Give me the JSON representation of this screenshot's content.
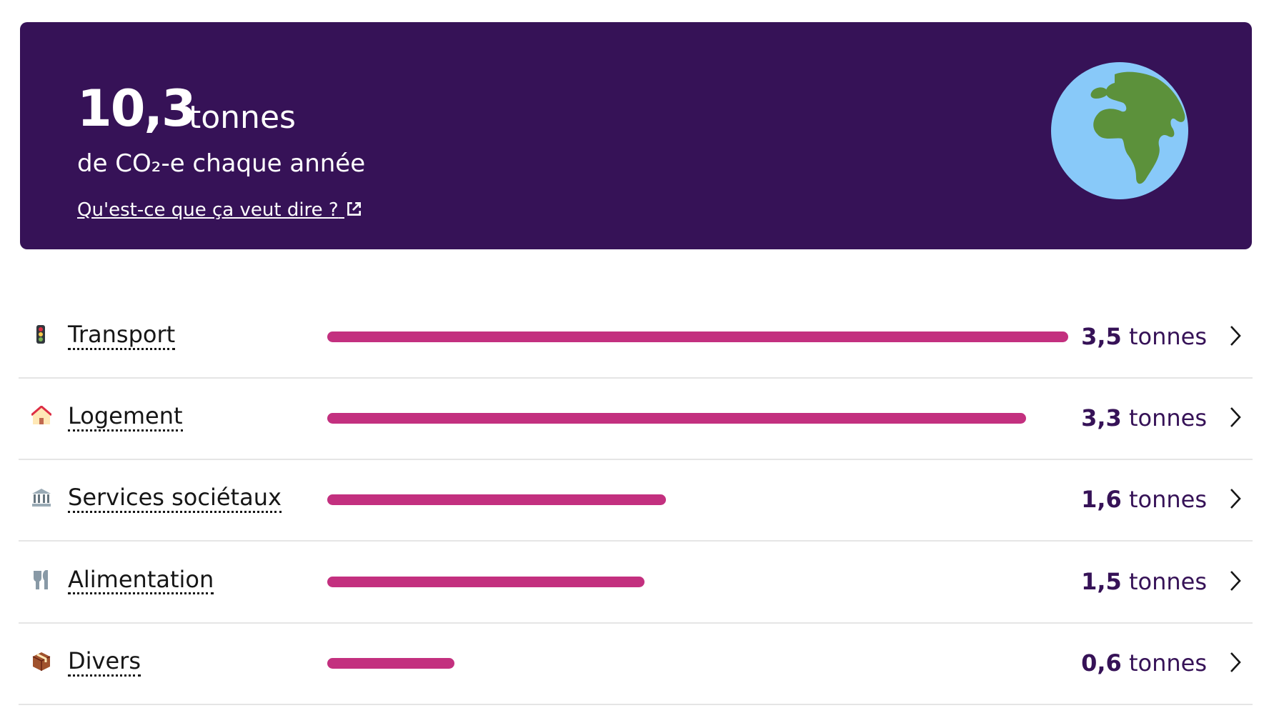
{
  "header": {
    "total": "10,3",
    "unit": "tonnes",
    "subtitle": "de CO₂-e chaque année",
    "link": "Qu'est-ce que ça veut dire ?"
  },
  "categories": [
    {
      "name": "Transport",
      "value": 3.5,
      "value_label": "3,5"
    },
    {
      "name": "Logement",
      "value": 3.3,
      "value_label": "3,3"
    },
    {
      "name": "Services sociétaux",
      "value": 1.6,
      "value_label": "1,6"
    },
    {
      "name": "Alimentation",
      "value": 1.5,
      "value_label": "1,5"
    },
    {
      "name": "Divers",
      "value": 0.6,
      "value_label": "0,6"
    }
  ]
}
